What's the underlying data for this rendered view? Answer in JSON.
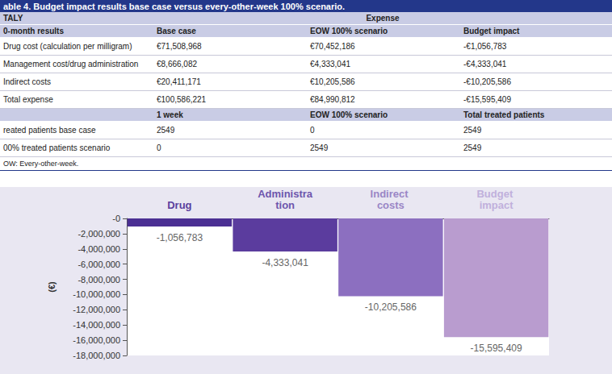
{
  "table": {
    "title": "able 4.  Budget impact results base case versus every-other-week 100% scenario.",
    "header": [
      "TALY",
      "Expense"
    ],
    "columns": [
      "0-month results",
      "Base case",
      "EOW 100% scenario",
      "Budget impact"
    ],
    "rows": [
      [
        "Drug cost (calculation per milligram)",
        "€71,508,968",
        "€70,452,186",
        "-€1,056,783"
      ],
      [
        "Management cost/drug administration",
        "€8,666,082",
        "€4,333,041",
        "-€4,333,041"
      ],
      [
        "Indirect costs",
        "€20,411,171",
        "€10,205,586",
        "-€10,205,586"
      ],
      [
        "Total expense",
        "€100,586,221",
        "€84,990,812",
        "-€15,595,409"
      ]
    ],
    "patients_header": [
      null,
      "1 week",
      "EOW 100% scenario",
      "Total treated patients"
    ],
    "patient_rows": [
      [
        "reated patients base case",
        "2549",
        "0",
        "2549"
      ],
      [
        "00% treated patients scenario",
        "0",
        "2549",
        "2549"
      ]
    ],
    "footnote": "OW: Every-other-week."
  },
  "chart_data": {
    "type": "bar",
    "categories": [
      "Drug",
      "Administration",
      "Indirect costs",
      "Budget impact"
    ],
    "values": [
      -1056783,
      -4333041,
      -10205586,
      -15595409
    ],
    "value_labels": [
      "-1,056,783",
      "-4,333,041",
      "-10,205,586",
      "-15,595,409"
    ],
    "colors": [
      "#4b2f93",
      "#5b3c9e",
      "#8c6fc0",
      "#b99ccf"
    ],
    "ylabel": "(€)",
    "ylim": [
      -18000000,
      0
    ],
    "yticks": [
      {
        "value": 0,
        "label": "-0"
      },
      {
        "value": -2000000,
        "label": "-2,000,000"
      },
      {
        "value": -4000000,
        "label": "-4,000,000"
      },
      {
        "value": -6000000,
        "label": "-6,000,000"
      },
      {
        "value": -8000000,
        "label": "-8,000,000"
      },
      {
        "value": -10000000,
        "label": "-10,000,000"
      },
      {
        "value": -12000000,
        "label": "-12,000,000"
      },
      {
        "value": -14000000,
        "label": "-14,000,000"
      },
      {
        "value": -16000000,
        "label": "-16,000,000"
      },
      {
        "value": -18000000,
        "label": "-18,000,000"
      }
    ],
    "grid": false,
    "data_labels": true
  }
}
